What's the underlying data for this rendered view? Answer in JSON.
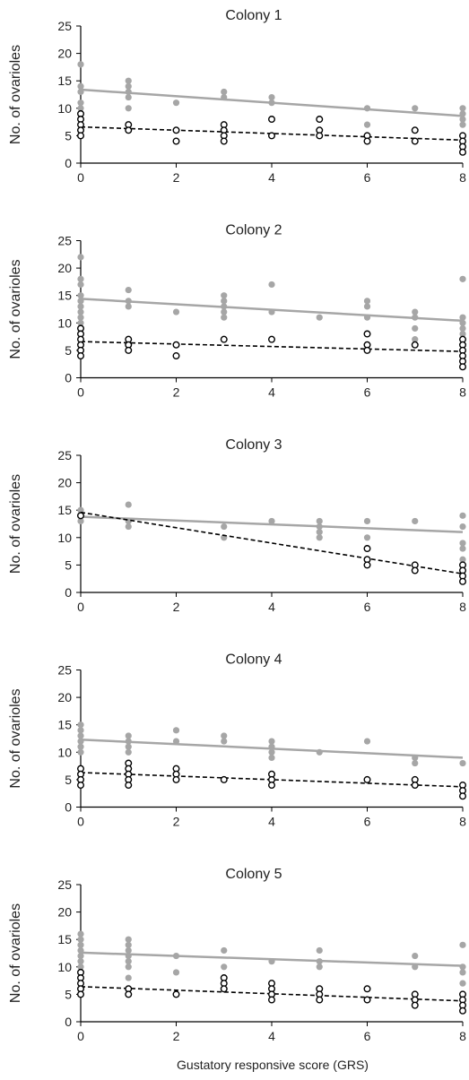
{
  "figure": {
    "xlabel": "Gustatory responsive score (GRS)",
    "colors": {
      "grey_series": "#a6a6a6",
      "black_series": "#000000",
      "axis": "#000000"
    }
  },
  "chart_data": [
    {
      "type": "scatter",
      "title": "Colony 1",
      "ylabel": "No. of ovarioles",
      "xlabel": "",
      "xlim": [
        0,
        8
      ],
      "ylim": [
        0,
        25
      ],
      "xticks": [
        0,
        2,
        4,
        6,
        8
      ],
      "yticks": [
        0,
        5,
        10,
        15,
        20,
        25
      ],
      "grid": false,
      "series": [
        {
          "style": "grey filled points, solid trend line",
          "points": [
            [
              0,
              18
            ],
            [
              0,
              14
            ],
            [
              0,
              13
            ],
            [
              0,
              11
            ],
            [
              0,
              10
            ],
            [
              0,
              9
            ],
            [
              1,
              15
            ],
            [
              1,
              14
            ],
            [
              1,
              13
            ],
            [
              1,
              12
            ],
            [
              1,
              10
            ],
            [
              2,
              11
            ],
            [
              3,
              13
            ],
            [
              3,
              12
            ],
            [
              4,
              12
            ],
            [
              4,
              11
            ],
            [
              6,
              10
            ],
            [
              6,
              7
            ],
            [
              7,
              10
            ],
            [
              8,
              10
            ],
            [
              8,
              9
            ],
            [
              8,
              8
            ],
            [
              8,
              7
            ]
          ],
          "trend": [
            [
              0,
              13.4
            ],
            [
              8,
              8.6
            ]
          ]
        },
        {
          "style": "black open points, dashed trend line",
          "points": [
            [
              0,
              9
            ],
            [
              0,
              8
            ],
            [
              0,
              7
            ],
            [
              0,
              6
            ],
            [
              0,
              5
            ],
            [
              1,
              7
            ],
            [
              1,
              6
            ],
            [
              2,
              6
            ],
            [
              2,
              4
            ],
            [
              3,
              7
            ],
            [
              3,
              6
            ],
            [
              3,
              5
            ],
            [
              3,
              4
            ],
            [
              4,
              8
            ],
            [
              4,
              5
            ],
            [
              5,
              8
            ],
            [
              5,
              6
            ],
            [
              5,
              5
            ],
            [
              6,
              5
            ],
            [
              6,
              4
            ],
            [
              7,
              6
            ],
            [
              7,
              4
            ],
            [
              8,
              5
            ],
            [
              8,
              4
            ],
            [
              8,
              3
            ],
            [
              8,
              2
            ]
          ],
          "trend": [
            [
              0,
              6.6
            ],
            [
              8,
              4.2
            ]
          ]
        }
      ]
    },
    {
      "type": "scatter",
      "title": "Colony 2",
      "ylabel": "No. of ovarioles",
      "xlabel": "",
      "xlim": [
        0,
        8
      ],
      "ylim": [
        0,
        25
      ],
      "xticks": [
        0,
        2,
        4,
        6,
        8
      ],
      "yticks": [
        0,
        5,
        10,
        15,
        20,
        25
      ],
      "grid": false,
      "series": [
        {
          "style": "grey filled points, solid trend line",
          "points": [
            [
              0,
              22
            ],
            [
              0,
              18
            ],
            [
              0,
              17
            ],
            [
              0,
              15
            ],
            [
              0,
              14
            ],
            [
              0,
              13
            ],
            [
              0,
              12
            ],
            [
              0,
              11
            ],
            [
              0,
              10
            ],
            [
              1,
              16
            ],
            [
              1,
              14
            ],
            [
              1,
              13
            ],
            [
              2,
              12
            ],
            [
              3,
              15
            ],
            [
              3,
              14
            ],
            [
              3,
              13
            ],
            [
              3,
              12
            ],
            [
              3,
              11
            ],
            [
              4,
              17
            ],
            [
              4,
              12
            ],
            [
              5,
              11
            ],
            [
              6,
              14
            ],
            [
              6,
              13
            ],
            [
              6,
              11
            ],
            [
              7,
              12
            ],
            [
              7,
              11
            ],
            [
              7,
              9
            ],
            [
              7,
              7
            ],
            [
              8,
              18
            ],
            [
              8,
              11
            ],
            [
              8,
              10
            ],
            [
              8,
              9
            ],
            [
              8,
              8
            ]
          ],
          "trend": [
            [
              0,
              14.4
            ],
            [
              8,
              10.4
            ]
          ]
        },
        {
          "style": "black open points, dashed trend line",
          "points": [
            [
              0,
              9
            ],
            [
              0,
              8
            ],
            [
              0,
              7
            ],
            [
              0,
              6
            ],
            [
              0,
              5
            ],
            [
              0,
              4
            ],
            [
              1,
              7
            ],
            [
              1,
              6
            ],
            [
              1,
              5
            ],
            [
              2,
              6
            ],
            [
              2,
              4
            ],
            [
              3,
              7
            ],
            [
              4,
              7
            ],
            [
              6,
              8
            ],
            [
              6,
              6
            ],
            [
              6,
              5
            ],
            [
              7,
              6
            ],
            [
              8,
              7
            ],
            [
              8,
              6
            ],
            [
              8,
              5
            ],
            [
              8,
              4
            ],
            [
              8,
              3
            ],
            [
              8,
              2
            ]
          ],
          "trend": [
            [
              0,
              6.6
            ],
            [
              8,
              4.8
            ]
          ]
        }
      ]
    },
    {
      "type": "scatter",
      "title": "Colony 3",
      "ylabel": "No. of ovarioles",
      "xlabel": "",
      "xlim": [
        0,
        8
      ],
      "ylim": [
        0,
        25
      ],
      "xticks": [
        0,
        2,
        4,
        6,
        8
      ],
      "yticks": [
        0,
        5,
        10,
        15,
        20,
        25
      ],
      "grid": false,
      "series": [
        {
          "style": "grey filled points, solid trend line",
          "points": [
            [
              0,
              15
            ],
            [
              0,
              14
            ],
            [
              0,
              13
            ],
            [
              1,
              16
            ],
            [
              1,
              13
            ],
            [
              1,
              12
            ],
            [
              3,
              12
            ],
            [
              3,
              10
            ],
            [
              4,
              13
            ],
            [
              5,
              13
            ],
            [
              5,
              12
            ],
            [
              5,
              11
            ],
            [
              5,
              10
            ],
            [
              6,
              13
            ],
            [
              6,
              10
            ],
            [
              7,
              13
            ],
            [
              8,
              14
            ],
            [
              8,
              12
            ],
            [
              8,
              9
            ],
            [
              8,
              8
            ],
            [
              8,
              6
            ]
          ],
          "trend": [
            [
              0,
              13.8
            ],
            [
              8,
              11.0
            ]
          ]
        },
        {
          "style": "black open points, dashed trend line",
          "points": [
            [
              0,
              14
            ],
            [
              6,
              8
            ],
            [
              6,
              6
            ],
            [
              6,
              5
            ],
            [
              7,
              5
            ],
            [
              7,
              4
            ],
            [
              8,
              5
            ],
            [
              8,
              4
            ],
            [
              8,
              3
            ],
            [
              8,
              2
            ]
          ],
          "trend": [
            [
              0,
              14.6
            ],
            [
              8,
              3.4
            ]
          ]
        }
      ]
    },
    {
      "type": "scatter",
      "title": "Colony 4",
      "ylabel": "No. of ovarioles",
      "xlabel": "",
      "xlim": [
        0,
        8
      ],
      "ylim": [
        0,
        25
      ],
      "xticks": [
        0,
        2,
        4,
        6,
        8
      ],
      "yticks": [
        0,
        5,
        10,
        15,
        20,
        25
      ],
      "grid": false,
      "series": [
        {
          "style": "grey filled points, solid trend line",
          "points": [
            [
              0,
              15
            ],
            [
              0,
              14
            ],
            [
              0,
              13
            ],
            [
              0,
              12
            ],
            [
              0,
              11
            ],
            [
              0,
              10
            ],
            [
              1,
              13
            ],
            [
              1,
              12
            ],
            [
              1,
              11
            ],
            [
              1,
              10
            ],
            [
              2,
              14
            ],
            [
              2,
              12
            ],
            [
              3,
              13
            ],
            [
              3,
              12
            ],
            [
              4,
              12
            ],
            [
              4,
              11
            ],
            [
              4,
              10
            ],
            [
              4,
              9
            ],
            [
              5,
              10
            ],
            [
              6,
              12
            ],
            [
              7,
              9
            ],
            [
              7,
              8
            ],
            [
              8,
              8
            ]
          ],
          "trend": [
            [
              0,
              12.3
            ],
            [
              8,
              9.0
            ]
          ]
        },
        {
          "style": "black open points, dashed trend line",
          "points": [
            [
              0,
              7
            ],
            [
              0,
              6
            ],
            [
              0,
              5
            ],
            [
              0,
              4
            ],
            [
              1,
              8
            ],
            [
              1,
              7
            ],
            [
              1,
              6
            ],
            [
              1,
              5
            ],
            [
              1,
              4
            ],
            [
              2,
              7
            ],
            [
              2,
              6
            ],
            [
              2,
              5
            ],
            [
              3,
              5
            ],
            [
              4,
              6
            ],
            [
              4,
              5
            ],
            [
              4,
              4
            ],
            [
              6,
              5
            ],
            [
              7,
              5
            ],
            [
              7,
              4
            ],
            [
              8,
              4
            ],
            [
              8,
              3
            ],
            [
              8,
              2
            ]
          ],
          "trend": [
            [
              0,
              6.3
            ],
            [
              8,
              3.7
            ]
          ]
        }
      ]
    },
    {
      "type": "scatter",
      "title": "Colony 5",
      "ylabel": "No. of ovarioles",
      "xlabel": "Gustatory responsive score (GRS)",
      "xlim": [
        0,
        8
      ],
      "ylim": [
        0,
        25
      ],
      "xticks": [
        0,
        2,
        4,
        6,
        8
      ],
      "yticks": [
        0,
        5,
        10,
        15,
        20,
        25
      ],
      "grid": false,
      "series": [
        {
          "style": "grey filled points, solid trend line",
          "points": [
            [
              0,
              16
            ],
            [
              0,
              15
            ],
            [
              0,
              14
            ],
            [
              0,
              13
            ],
            [
              0,
              12
            ],
            [
              0,
              11
            ],
            [
              0,
              10
            ],
            [
              1,
              15
            ],
            [
              1,
              14
            ],
            [
              1,
              13
            ],
            [
              1,
              12
            ],
            [
              1,
              11
            ],
            [
              1,
              10
            ],
            [
              1,
              8
            ],
            [
              2,
              12
            ],
            [
              2,
              9
            ],
            [
              3,
              13
            ],
            [
              3,
              10
            ],
            [
              4,
              11
            ],
            [
              5,
              13
            ],
            [
              5,
              11
            ],
            [
              5,
              10
            ],
            [
              7,
              12
            ],
            [
              7,
              10
            ],
            [
              8,
              14
            ],
            [
              8,
              10
            ],
            [
              8,
              9
            ],
            [
              8,
              7
            ]
          ],
          "trend": [
            [
              0,
              12.6
            ],
            [
              8,
              10.2
            ]
          ]
        },
        {
          "style": "black open points, dashed trend line",
          "points": [
            [
              0,
              9
            ],
            [
              0,
              8
            ],
            [
              0,
              7
            ],
            [
              0,
              6
            ],
            [
              0,
              5
            ],
            [
              1,
              6
            ],
            [
              1,
              5
            ],
            [
              2,
              5
            ],
            [
              3,
              8
            ],
            [
              3,
              7
            ],
            [
              3,
              6
            ],
            [
              4,
              7
            ],
            [
              4,
              6
            ],
            [
              4,
              5
            ],
            [
              4,
              4
            ],
            [
              5,
              6
            ],
            [
              5,
              5
            ],
            [
              5,
              4
            ],
            [
              6,
              6
            ],
            [
              6,
              4
            ],
            [
              7,
              5
            ],
            [
              7,
              4
            ],
            [
              7,
              3
            ],
            [
              8,
              5
            ],
            [
              8,
              4
            ],
            [
              8,
              3
            ],
            [
              8,
              2
            ]
          ],
          "trend": [
            [
              0,
              6.4
            ],
            [
              8,
              3.8
            ]
          ]
        }
      ]
    }
  ]
}
